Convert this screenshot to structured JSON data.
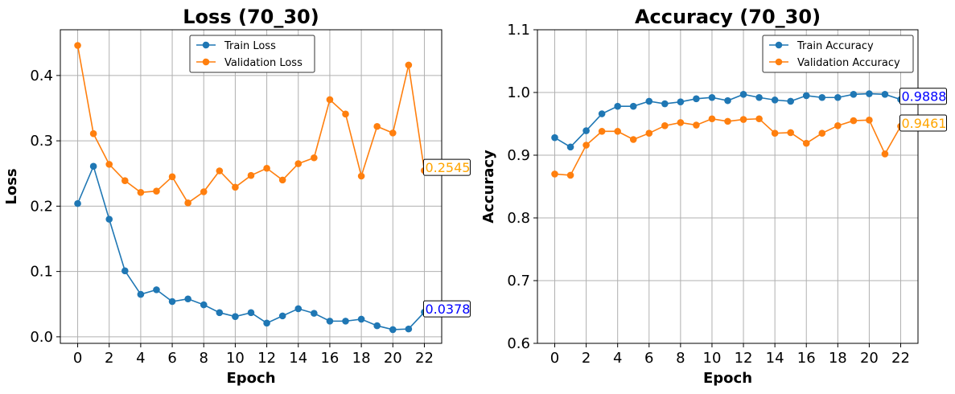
{
  "chart_data": [
    {
      "type": "line",
      "title": "Loss (70_30)",
      "xlabel": "Epoch",
      "ylabel": "Loss",
      "x": [
        0,
        1,
        2,
        3,
        4,
        5,
        6,
        7,
        8,
        9,
        10,
        11,
        12,
        13,
        14,
        15,
        16,
        17,
        18,
        19,
        20,
        21,
        22
      ],
      "xticks": [
        0,
        2,
        4,
        6,
        8,
        10,
        12,
        14,
        16,
        18,
        20,
        22
      ],
      "xlim": [
        -1.1,
        23.1
      ],
      "yticks": [
        0.0,
        0.1,
        0.2,
        0.3,
        0.4
      ],
      "ytick_labels": [
        "0.0",
        "0.1",
        "0.2",
        "0.3",
        "0.4"
      ],
      "ylim": [
        -0.01,
        0.47
      ],
      "grid": true,
      "legend_position": "upper-center",
      "series": [
        {
          "name": "Train Loss",
          "color": "#1f77b4",
          "values": [
            0.204,
            0.261,
            0.18,
            0.101,
            0.065,
            0.072,
            0.054,
            0.058,
            0.049,
            0.037,
            0.031,
            0.037,
            0.021,
            0.032,
            0.043,
            0.036,
            0.024,
            0.024,
            0.027,
            0.017,
            0.011,
            0.012,
            0.0378
          ]
        },
        {
          "name": "Validation Loss",
          "color": "#ff7f0e",
          "values": [
            0.446,
            0.311,
            0.264,
            0.239,
            0.221,
            0.223,
            0.245,
            0.205,
            0.222,
            0.254,
            0.229,
            0.247,
            0.258,
            0.24,
            0.265,
            0.274,
            0.363,
            0.341,
            0.246,
            0.322,
            0.312,
            0.416,
            0.2545
          ]
        }
      ],
      "annotations": [
        {
          "text": "0.0378",
          "series": 0,
          "color": "#0000ff"
        },
        {
          "text": "0.2545",
          "series": 1,
          "color": "#ffa500"
        }
      ]
    },
    {
      "type": "line",
      "title": "Accuracy (70_30)",
      "xlabel": "Epoch",
      "ylabel": "Accuracy",
      "x": [
        0,
        1,
        2,
        3,
        4,
        5,
        6,
        7,
        8,
        9,
        10,
        11,
        12,
        13,
        14,
        15,
        16,
        17,
        18,
        19,
        20,
        21,
        22
      ],
      "xticks": [
        0,
        2,
        4,
        6,
        8,
        10,
        12,
        14,
        16,
        18,
        20,
        22
      ],
      "xlim": [
        -1.1,
        23.1
      ],
      "yticks": [
        0.6,
        0.7,
        0.8,
        0.9,
        1.0,
        1.1
      ],
      "ytick_labels": [
        "0.6",
        "0.7",
        "0.8",
        "0.9",
        "1.0",
        "1.1"
      ],
      "ylim": [
        0.6,
        1.1
      ],
      "grid": true,
      "legend_position": "upper-right",
      "series": [
        {
          "name": "Train Accuracy",
          "color": "#1f77b4",
          "values": [
            0.928,
            0.913,
            0.939,
            0.966,
            0.978,
            0.978,
            0.986,
            0.982,
            0.985,
            0.99,
            0.992,
            0.987,
            0.997,
            0.992,
            0.988,
            0.986,
            0.995,
            0.992,
            0.992,
            0.997,
            0.998,
            0.997,
            0.9888
          ]
        },
        {
          "name": "Validation Accuracy",
          "color": "#ff7f0e",
          "values": [
            0.87,
            0.868,
            0.916,
            0.938,
            0.938,
            0.925,
            0.935,
            0.947,
            0.952,
            0.948,
            0.958,
            0.954,
            0.957,
            0.958,
            0.935,
            0.936,
            0.919,
            0.935,
            0.947,
            0.955,
            0.956,
            0.902,
            0.9461
          ]
        }
      ],
      "annotations": [
        {
          "text": "0.9888",
          "series": 0,
          "color": "#0000ff"
        },
        {
          "text": "0.9461",
          "series": 1,
          "color": "#ffa500"
        }
      ]
    }
  ]
}
